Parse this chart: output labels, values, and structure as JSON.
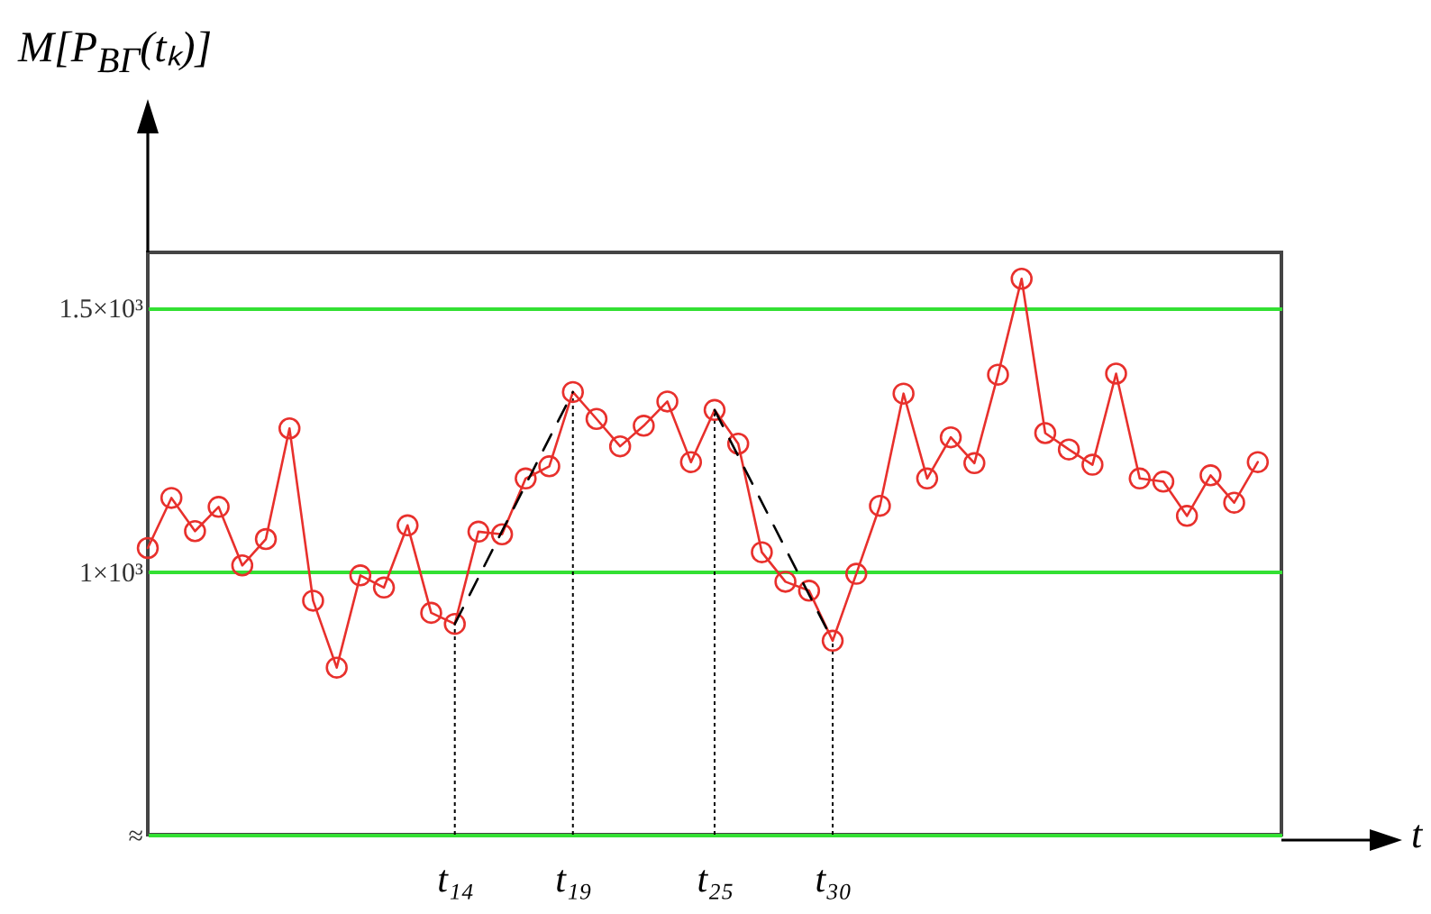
{
  "chart_data": {
    "type": "line",
    "ylabel": "M[P$_{ВГ}$(tₖ)]",
    "xlabel": "t",
    "categories": [
      null,
      null,
      null,
      null,
      null,
      null,
      null,
      null,
      null,
      null,
      null,
      null,
      null,
      "t₁₄",
      null,
      null,
      null,
      null,
      "t₁₉",
      null,
      null,
      null,
      null,
      null,
      "t₂₅",
      null,
      null,
      null,
      null,
      "t₃₀",
      null,
      null,
      null,
      null,
      null,
      null,
      null,
      null,
      null,
      null,
      null,
      null,
      null,
      null,
      null,
      null,
      null,
      null
    ],
    "series": [
      {
        "color": "#e8302c",
        "values": [
          1044,
          1139,
          1076,
          1122,
          1011,
          1061,
          1271,
          944,
          817,
          992,
          969,
          1087,
          921,
          900,
          1075,
          1070,
          1176,
          1199,
          1340,
          1289,
          1237,
          1276,
          1322,
          1207,
          1306,
          1242,
          1036,
          980,
          963,
          868,
          995,
          1124,
          1337,
          1176,
          1254,
          1205,
          1373,
          1555,
          1262,
          1231,
          1202,
          1375,
          1176,
          1170,
          1105,
          1182,
          1130,
          1207
        ]
      },
      {
        "type": "line",
        "color": "#000000",
        "line_style": "dashed",
        "marker": "none",
        "x": [
          "t₁₄",
          "t₁₉"
        ],
        "values": [
          900,
          1340
        ]
      },
      {
        "type": "line",
        "color": "#000000",
        "line_style": "dashed",
        "marker": "none",
        "x": [
          "t₂₅",
          "t₃₀"
        ],
        "values": [
          1306,
          868
        ]
      }
    ],
    "ylim": [
      500,
      1605
    ],
    "yticks": [
      {
        "value": 500,
        "label": "≈"
      },
      {
        "value": 1000,
        "label": "1×10³"
      },
      {
        "value": 1500,
        "label": "1.5×10³"
      }
    ],
    "grid": "y",
    "marker": "circle",
    "line_style": "solid",
    "ref_lines": [
      {
        "axis": "x",
        "value": "t₁₄",
        "color": "#000000",
        "line_style": "dotted"
      },
      {
        "axis": "x",
        "value": "t₁₉",
        "color": "#000000",
        "line_style": "dotted"
      },
      {
        "axis": "x",
        "value": "t₂₅",
        "color": "#000000",
        "line_style": "dotted"
      },
      {
        "axis": "x",
        "value": "t₃₀",
        "color": "#000000",
        "line_style": "dotted"
      }
    ]
  }
}
